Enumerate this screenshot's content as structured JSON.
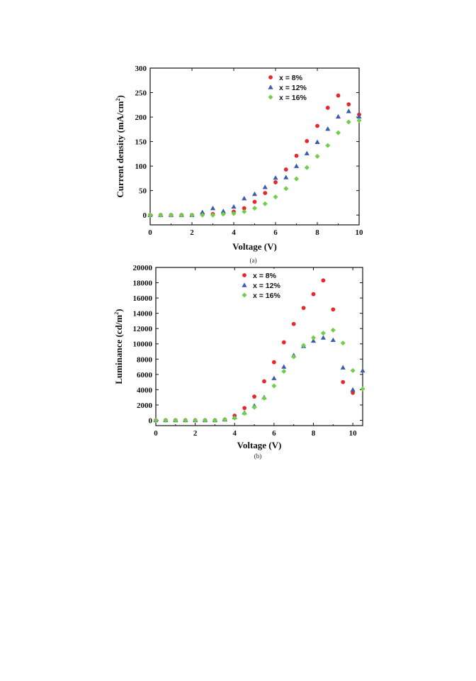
{
  "chart_data": [
    {
      "type": "scatter",
      "caption": "(a)",
      "xlabel": "Voltage (V)",
      "ylabel": "Current density (mA/cm",
      "ylabel_sup": "2",
      "ylabel_close": ")",
      "xlim": [
        0,
        10
      ],
      "ylim": [
        -20,
        300
      ],
      "xticks": [
        0,
        2,
        4,
        6,
        8,
        10
      ],
      "yticks": [
        0,
        50,
        100,
        150,
        200,
        250,
        300
      ],
      "grid": false,
      "legend_position": "top-right",
      "x": [
        0,
        0.5,
        1,
        1.5,
        2,
        2.5,
        3,
        3.5,
        4,
        4.5,
        5,
        5.5,
        6,
        6.5,
        7,
        7.5,
        8,
        8.5,
        9,
        9.5,
        10
      ],
      "series": [
        {
          "name": "x = 8%",
          "marker": "circle",
          "color": "#e8262b",
          "values": [
            0,
            0,
            0,
            0,
            0,
            1,
            2,
            3,
            7,
            14,
            27,
            45,
            67,
            93,
            121,
            151,
            182,
            219,
            244,
            226,
            205
          ]
        },
        {
          "name": "x = 12%",
          "marker": "triangle",
          "color": "#3a5bae",
          "values": [
            0,
            0,
            0,
            0,
            0,
            6,
            14,
            8,
            17,
            34,
            43,
            57,
            76,
            77,
            100,
            126,
            149,
            176,
            201,
            212,
            201
          ]
        },
        {
          "name": "x = 16%",
          "marker": "diamond",
          "color": "#6fcf4a",
          "values": [
            0,
            0,
            0,
            0,
            0,
            0,
            0,
            2,
            3,
            7,
            14,
            23,
            37,
            54,
            74,
            97,
            120,
            142,
            168,
            190,
            193
          ]
        }
      ]
    },
    {
      "type": "scatter",
      "caption": "(b)",
      "xlabel": "Voltage (V)",
      "ylabel": "Luminance (cd/m",
      "ylabel_sup": "2",
      "ylabel_close": ")",
      "xlim": [
        0,
        10.5
      ],
      "ylim": [
        -700,
        20000
      ],
      "xticks": [
        0,
        2,
        4,
        6,
        8,
        10
      ],
      "yticks": [
        0,
        2000,
        4000,
        6000,
        8000,
        10000,
        12000,
        14000,
        16000,
        18000,
        20000
      ],
      "grid": false,
      "legend_position": "top-center",
      "x": [
        0,
        0.5,
        1,
        1.5,
        2,
        2.5,
        3,
        3.5,
        4,
        4.5,
        5,
        5.5,
        6,
        6.5,
        7,
        7.5,
        8,
        8.5,
        9,
        9.5,
        10,
        10.5
      ],
      "series": [
        {
          "name": "x = 8%",
          "marker": "circle",
          "color": "#e8262b",
          "values": [
            0,
            0,
            0,
            0,
            0,
            0,
            0,
            100,
            600,
            1600,
            3100,
            5100,
            7600,
            10200,
            12600,
            14700,
            16500,
            18300,
            14500,
            5000,
            3600,
            null
          ]
        },
        {
          "name": "x = 12%",
          "marker": "triangle",
          "color": "#3a5bae",
          "values": [
            0,
            0,
            0,
            0,
            0,
            0,
            0,
            100,
            400,
            1000,
            1900,
            3000,
            5500,
            7000,
            8500,
            9700,
            10400,
            10800,
            10500,
            6900,
            4000,
            6500
          ]
        },
        {
          "name": "x = 16%",
          "marker": "diamond",
          "color": "#6fcf4a",
          "values": [
            0,
            0,
            0,
            0,
            0,
            0,
            0,
            100,
            300,
            900,
            1700,
            2900,
            4500,
            6400,
            8300,
            9800,
            10800,
            11400,
            11800,
            10100,
            6500,
            4100
          ]
        }
      ]
    }
  ]
}
